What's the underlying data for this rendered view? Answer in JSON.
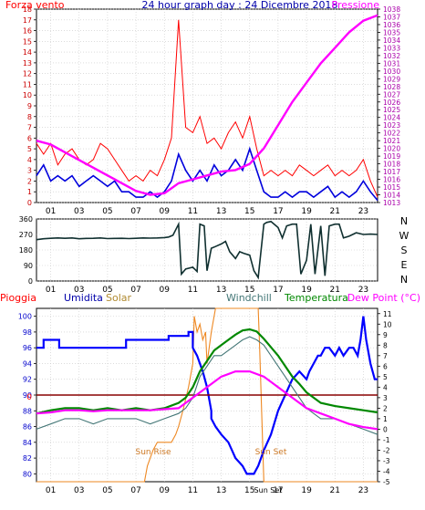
{
  "chart_data": [
    {
      "type": "line",
      "title": "24 hour graph day : 24 Dicembre 2018",
      "left_axis_label": "Forza vento",
      "right_axis_label": "Pressione",
      "x_ticks": [
        "01",
        "03",
        "05",
        "07",
        "09",
        "11",
        "13",
        "15",
        "17",
        "19",
        "21",
        "23"
      ],
      "x_range": [
        0,
        24
      ],
      "left_ylim": [
        0,
        18
      ],
      "left_ticks": [
        0,
        1,
        2,
        3,
        4,
        5,
        6,
        7,
        8,
        9,
        10,
        11,
        12,
        13,
        14,
        15,
        16,
        17,
        18
      ],
      "right_ylim": [
        1013,
        1038
      ],
      "right_ticks": [
        1013,
        1014,
        1015,
        1016,
        1017,
        1018,
        1019,
        1020,
        1021,
        1022,
        1023,
        1024,
        1025,
        1026,
        1027,
        1028,
        1029,
        1030,
        1031,
        1032,
        1033,
        1034,
        1035,
        1036,
        1037,
        1038
      ],
      "colors": {
        "gust": "#ff0000",
        "wind": "#0000dd",
        "pressure": "#ff00ff",
        "title": "#0000aa"
      },
      "series": [
        {
          "key": "gust",
          "axis": "left",
          "x": [
            0,
            0.5,
            1,
            1.5,
            2,
            2.5,
            3,
            3.5,
            4,
            4.5,
            5,
            5.5,
            6,
            6.5,
            7,
            7.5,
            8,
            8.5,
            9,
            9.5,
            10,
            10.5,
            11,
            11.5,
            12,
            12.5,
            13,
            13.5,
            14,
            14.5,
            15,
            15.5,
            16,
            16.5,
            17,
            17.5,
            18,
            18.5,
            19,
            19.5,
            20,
            20.5,
            21,
            21.5,
            22,
            22.5,
            23,
            23.5,
            24
          ],
          "values": [
            5.5,
            4.5,
            5.5,
            3.5,
            4.5,
            5,
            4,
            3.5,
            4,
            5.5,
            5,
            4,
            3,
            2,
            2.5,
            2,
            3,
            2.5,
            4,
            6,
            17,
            7,
            6.5,
            8,
            5.5,
            6,
            5,
            6.5,
            7.5,
            6,
            8,
            5,
            2.5,
            3,
            2.5,
            3,
            2.5,
            3.5,
            3,
            2.5,
            3,
            3.5,
            2.5,
            3,
            2.5,
            3,
            4,
            2,
            0.5
          ]
        },
        {
          "key": "wind",
          "axis": "left",
          "x": [
            0,
            0.5,
            1,
            1.5,
            2,
            2.5,
            3,
            3.5,
            4,
            4.5,
            5,
            5.5,
            6,
            6.5,
            7,
            7.5,
            8,
            8.5,
            9,
            9.5,
            10,
            10.5,
            11,
            11.5,
            12,
            12.5,
            13,
            13.5,
            14,
            14.5,
            15,
            15.5,
            16,
            16.5,
            17,
            17.5,
            18,
            18.5,
            19,
            19.5,
            20,
            20.5,
            21,
            21.5,
            22,
            22.5,
            23,
            23.5,
            24
          ],
          "values": [
            2.5,
            3.5,
            2,
            2.5,
            2,
            2.5,
            1.5,
            2,
            2.5,
            2,
            1.5,
            2,
            1,
            1,
            0.5,
            0.5,
            1,
            0.5,
            1,
            2,
            4.5,
            3,
            2,
            3,
            2,
            3.5,
            2.5,
            3,
            4,
            3,
            5,
            3,
            1,
            0.5,
            0.5,
            1,
            0.5,
            1,
            1,
            0.5,
            1,
            1.5,
            0.5,
            1,
            0.5,
            1,
            2,
            1,
            0.2
          ]
        },
        {
          "key": "pressure",
          "axis": "right",
          "x": [
            0,
            1,
            2,
            3,
            4,
            5,
            6,
            7,
            8,
            9,
            10,
            11,
            12,
            13,
            14,
            15,
            16,
            17,
            18,
            19,
            20,
            21,
            22,
            23,
            24
          ],
          "values": [
            1021,
            1020.5,
            1019.5,
            1018.5,
            1017.5,
            1016.5,
            1015.5,
            1014.5,
            1014,
            1014.2,
            1015.5,
            1016,
            1016.5,
            1017,
            1017.2,
            1018,
            1020,
            1023,
            1026,
            1028.5,
            1031,
            1033,
            1035,
            1036.5,
            1037.2
          ]
        }
      ]
    },
    {
      "type": "line",
      "x_range": [
        0,
        24
      ],
      "ylim": [
        0,
        360
      ],
      "y_ticks": [
        0,
        90,
        180,
        270,
        360
      ],
      "compass_labels": [
        "N",
        "W",
        "S",
        "E",
        "N"
      ],
      "x_ticks": [
        "01",
        "03",
        "05",
        "07",
        "09",
        "11",
        "13",
        "15",
        "17",
        "19",
        "21",
        "23"
      ],
      "colors": {
        "direction": "#103030"
      },
      "series": [
        {
          "key": "direction",
          "x": [
            0,
            0.5,
            1,
            1.5,
            2,
            2.5,
            3,
            3.5,
            4,
            4.5,
            5,
            5.5,
            6,
            6.5,
            7,
            7.5,
            8,
            8.5,
            9,
            9.3,
            9.6,
            10,
            10.2,
            10.5,
            11,
            11.3,
            11.5,
            11.8,
            12,
            12.3,
            12.6,
            13,
            13.3,
            13.6,
            14,
            14.3,
            14.6,
            15,
            15.3,
            15.6,
            16,
            16.2,
            16.5,
            17,
            17.3,
            17.6,
            18,
            18.3,
            18.6,
            19,
            19.3,
            19.6,
            20,
            20.3,
            20.6,
            21,
            21.3,
            21.6,
            22,
            22.5,
            23,
            23.5,
            24
          ],
          "values": [
            240,
            245,
            248,
            250,
            248,
            250,
            245,
            247,
            248,
            250,
            246,
            247,
            248,
            246,
            248,
            250,
            249,
            250,
            252,
            255,
            265,
            330,
            40,
            70,
            80,
            55,
            330,
            320,
            60,
            190,
            200,
            215,
            230,
            170,
            130,
            170,
            160,
            150,
            60,
            20,
            330,
            340,
            345,
            310,
            250,
            320,
            330,
            330,
            40,
            120,
            330,
            40,
            320,
            30,
            320,
            330,
            330,
            250,
            260,
            280,
            270,
            272,
            270
          ]
        }
      ]
    },
    {
      "type": "line",
      "labels": {
        "rain": "Pioggia",
        "humidity": "Umidita",
        "solar": "Solar",
        "windchill": "Windchill",
        "temperature": "Temperatura",
        "dewpoint": "Dew Point (°C)"
      },
      "annotations": {
        "sunrise": "Sun Rise",
        "sunset": "Sun Set"
      },
      "x_ticks": [
        "01",
        "03",
        "05",
        "07",
        "09",
        "11",
        "13",
        "15",
        "17",
        "19",
        "21",
        "23"
      ],
      "sunset_tick_label": "Sun Set",
      "x_range": [
        0,
        24
      ],
      "left_ylim": [
        79,
        101
      ],
      "left_ticks": [
        80,
        82,
        84,
        86,
        88,
        90,
        92,
        94,
        96,
        98,
        100
      ],
      "rain_value_label": "0",
      "right_ylim": [
        -5,
        11.5
      ],
      "right_ticks": [
        -5,
        -4,
        -3,
        -2,
        -1,
        0,
        1,
        2,
        3,
        4,
        5,
        6,
        7,
        8,
        9,
        10,
        11
      ],
      "colors": {
        "rain": "#ff0000",
        "humidity": "#0000ff",
        "solar": "#ee8822",
        "windchill": "#447777",
        "temperature": "#008800",
        "dewpoint": "#ff00ff",
        "rainline": "#880000"
      },
      "series": [
        {
          "key": "humidity",
          "axis": "left",
          "x": [
            0,
            0.5,
            0.5,
            1,
            1.6,
            1.6,
            2,
            5,
            6,
            6.3,
            6.3,
            9,
            9.3,
            9.3,
            10,
            10.7,
            10.7,
            11,
            11,
            11.3,
            11.5,
            11.7,
            12,
            12.3,
            12.3,
            12.6,
            13,
            13.5,
            14,
            14.5,
            14.8,
            15,
            15.3,
            15.6,
            16,
            16.5,
            17,
            17.5,
            18,
            18.5,
            19,
            19.2,
            19.5,
            19.8,
            20,
            20.3,
            20.6,
            21,
            21.3,
            21.6,
            22,
            22.3,
            22.6,
            22.8,
            23,
            23.2,
            23.5,
            23.8,
            24
          ],
          "values": [
            96,
            96,
            97,
            97,
            97,
            96,
            96,
            96,
            96,
            96,
            97,
            97,
            97,
            97.5,
            97.5,
            97.5,
            98,
            98,
            96,
            95,
            94,
            93,
            91,
            88,
            87,
            86,
            85,
            84,
            82,
            81,
            80,
            80,
            80,
            81,
            83,
            85,
            88,
            90,
            92,
            93,
            92,
            93,
            94,
            95,
            95,
            96,
            96,
            95,
            96,
            95,
            96,
            96,
            95,
            97,
            100,
            97,
            94,
            92,
            92
          ]
        },
        {
          "key": "solar",
          "axis": "left",
          "x": [
            0,
            7.6,
            7.8,
            8.2,
            8.5,
            9,
            9.5,
            9.8,
            10,
            10.3,
            10.7,
            11,
            11.1,
            11.3,
            11.5,
            11.7,
            11.9,
            12,
            12.3,
            12.6,
            13,
            14,
            15,
            15.5,
            15.6,
            15.7,
            16,
            24
          ],
          "values": [
            79,
            79,
            81,
            83,
            84,
            84,
            84,
            85,
            86,
            88,
            91,
            94,
            100,
            98,
            99,
            97,
            98,
            94,
            98,
            101,
            101,
            101,
            101,
            101,
            101,
            96,
            79,
            79
          ]
        },
        {
          "key": "rain",
          "axis": "left",
          "x": [
            0,
            24
          ],
          "values": [
            90,
            90
          ]
        },
        {
          "key": "windchill",
          "axis": "right",
          "x": [
            0,
            1,
            2,
            3,
            4,
            5,
            6,
            7,
            8,
            9,
            10,
            10.5,
            11,
            11.5,
            12,
            12.5,
            13,
            13.5,
            14,
            14.5,
            15,
            15.5,
            16,
            16.5,
            17,
            17.5,
            18,
            18.5,
            19,
            19.5,
            20,
            21,
            22,
            23,
            24
          ],
          "values": [
            0,
            0.5,
            1,
            1,
            0.5,
            1,
            1,
            1,
            0.5,
            1,
            1.5,
            2,
            3,
            5,
            6,
            7,
            7,
            7.5,
            8,
            8.5,
            8.8,
            8.5,
            8,
            7,
            6,
            5,
            4,
            3,
            2,
            1.5,
            1,
            1,
            0.5,
            0,
            -0.5
          ]
        },
        {
          "key": "temperature",
          "axis": "right",
          "x": [
            0,
            1,
            2,
            3,
            4,
            5,
            6,
            7,
            8,
            9,
            10,
            10.5,
            11,
            11.5,
            12,
            12.5,
            13,
            13.5,
            14,
            14.5,
            15,
            15.5,
            16,
            16.5,
            17,
            17.5,
            18,
            18.5,
            19,
            19.5,
            20,
            21,
            22,
            23,
            24
          ],
          "values": [
            1.5,
            1.8,
            2,
            2,
            1.8,
            2,
            1.8,
            2,
            1.8,
            2,
            2.5,
            3,
            4,
            5.5,
            6.5,
            7.5,
            8,
            8.5,
            9,
            9.4,
            9.5,
            9.3,
            8.6,
            7.8,
            7,
            6,
            5,
            4.3,
            3.5,
            3,
            2.5,
            2.2,
            2,
            1.8,
            1.6
          ]
        },
        {
          "key": "dewpoint",
          "axis": "right",
          "x": [
            0,
            1,
            2,
            3,
            4,
            5,
            6,
            7,
            8,
            9,
            10,
            11,
            12,
            13,
            14,
            15,
            16,
            17,
            18,
            19,
            20,
            21,
            22,
            23,
            24
          ],
          "values": [
            1.5,
            1.6,
            1.8,
            1.8,
            1.7,
            1.8,
            1.8,
            1.8,
            1.8,
            1.9,
            2,
            3,
            4,
            5,
            5.5,
            5.5,
            5,
            4,
            3,
            2,
            1.5,
            1,
            0.5,
            0.2,
            0
          ]
        }
      ]
    }
  ]
}
